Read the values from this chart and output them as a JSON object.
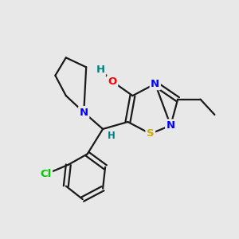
{
  "background_color": "#e8e8e8",
  "bond_color": "#1a1a1a",
  "bond_width": 1.6,
  "N_color": "#0000ff",
  "O_color": "#ff0000",
  "S_color": "#ccaa00",
  "Cl_color": "#00cc00",
  "H_color": "#008080",
  "figsize": [
    3.0,
    3.0
  ],
  "dpi": 100,
  "xlim": [
    0,
    10
  ],
  "ylim": [
    0,
    10
  ]
}
